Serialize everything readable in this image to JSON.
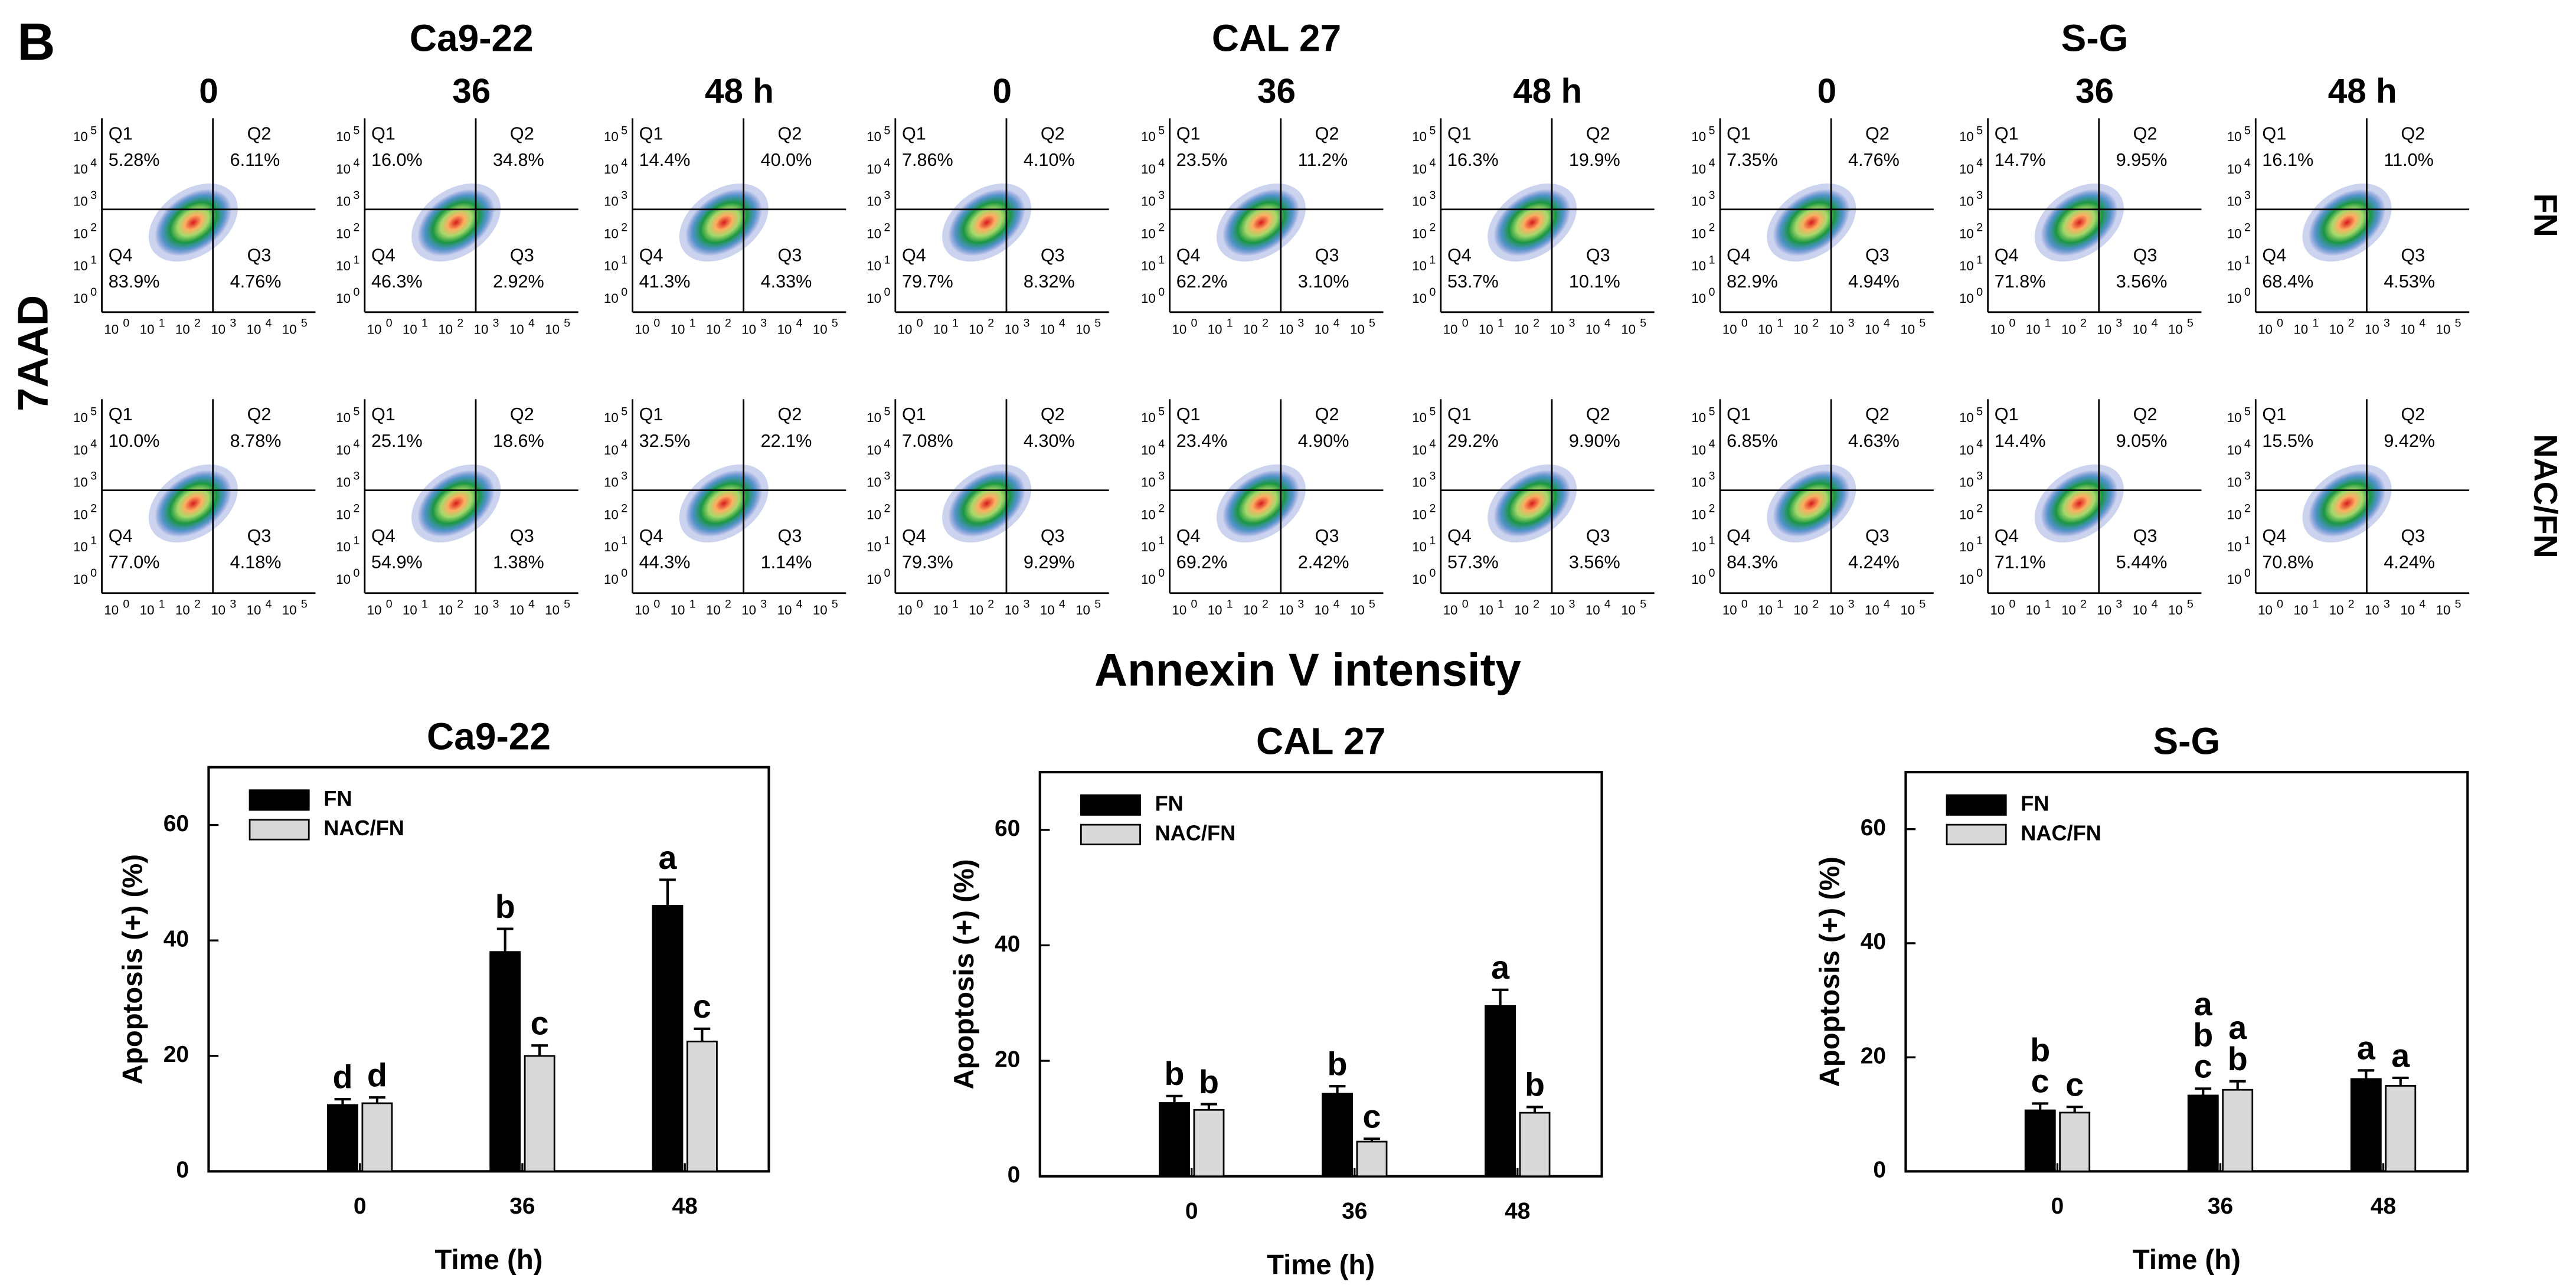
{
  "flow": {
    "panel_label": "B",
    "y_label": "7AAD",
    "x_label": "Annexin V intensity",
    "tick_base": "10",
    "exponents": [
      "0",
      "1",
      "2",
      "3",
      "4",
      "5"
    ],
    "rows": [
      "FN",
      "NAC/FN"
    ],
    "quadrant_names": [
      "Q1",
      "Q2",
      "Q3",
      "Q4"
    ],
    "groups": [
      {
        "title": "Ca9-22",
        "times": [
          "0",
          "36",
          "48 h"
        ],
        "panels": [
          [
            [
              "5.28%",
              "6.11%",
              "4.76%",
              "83.9%"
            ],
            [
              "16.0%",
              "34.8%",
              "2.92%",
              "46.3%"
            ],
            [
              "14.4%",
              "40.0%",
              "4.33%",
              "41.3%"
            ]
          ],
          [
            [
              "10.0%",
              "8.78%",
              "4.18%",
              "77.0%"
            ],
            [
              "25.1%",
              "18.6%",
              "1.38%",
              "54.9%"
            ],
            [
              "32.5%",
              "22.1%",
              "1.14%",
              "44.3%"
            ]
          ]
        ]
      },
      {
        "title": "CAL 27",
        "times": [
          "0",
          "36",
          "48 h"
        ],
        "panels": [
          [
            [
              "7.86%",
              "4.10%",
              "8.32%",
              "79.7%"
            ],
            [
              "23.5%",
              "11.2%",
              "3.10%",
              "62.2%"
            ],
            [
              "16.3%",
              "19.9%",
              "10.1%",
              "53.7%"
            ]
          ],
          [
            [
              "7.08%",
              "4.30%",
              "9.29%",
              "79.3%"
            ],
            [
              "23.4%",
              "4.90%",
              "2.42%",
              "69.2%"
            ],
            [
              "29.2%",
              "9.90%",
              "3.56%",
              "57.3%"
            ]
          ]
        ]
      },
      {
        "title": "S-G",
        "times": [
          "0",
          "36",
          "48 h"
        ],
        "panels": [
          [
            [
              "7.35%",
              "4.76%",
              "4.94%",
              "82.9%"
            ],
            [
              "14.7%",
              "9.95%",
              "3.56%",
              "71.8%"
            ],
            [
              "16.1%",
              "11.0%",
              "4.53%",
              "68.4%"
            ]
          ],
          [
            [
              "6.85%",
              "4.63%",
              "4.24%",
              "84.3%"
            ],
            [
              "14.4%",
              "9.05%",
              "5.44%",
              "71.1%"
            ],
            [
              "15.5%",
              "9.42%",
              "4.24%",
              "70.8%"
            ]
          ]
        ]
      }
    ]
  },
  "chart_data": [
    {
      "type": "bar",
      "title": "Ca9-22",
      "x_label": "Time (h)",
      "y_label": "Apoptosis (+) (%)",
      "categories": [
        "0",
        "36",
        "48"
      ],
      "ylim": [
        0,
        70
      ],
      "yticks": [
        0,
        20,
        40,
        60
      ],
      "legend": "upper left",
      "series": [
        {
          "name": "FN",
          "color": "#000000",
          "values": [
            11.5,
            38,
            46
          ],
          "errors": [
            1,
            4,
            4.5
          ],
          "letters": [
            [
              "d"
            ],
            [
              "b"
            ],
            [
              "a"
            ]
          ]
        },
        {
          "name": "NAC/FN",
          "color": "#d9d9d9",
          "values": [
            11.8,
            20,
            22.5
          ],
          "errors": [
            1,
            1.8,
            2.2
          ],
          "letters": [
            [
              "d"
            ],
            [
              "c"
            ],
            [
              "c"
            ]
          ]
        }
      ]
    },
    {
      "type": "bar",
      "title": "CAL 27",
      "x_label": "Time (h)",
      "y_label": "Apoptosis (+) (%)",
      "categories": [
        "0",
        "36",
        "48"
      ],
      "ylim": [
        0,
        70
      ],
      "yticks": [
        0,
        20,
        40,
        60
      ],
      "legend": "upper left",
      "series": [
        {
          "name": "FN",
          "color": "#000000",
          "values": [
            12.7,
            14.3,
            29.5
          ],
          "errors": [
            1.2,
            1.3,
            2.8
          ],
          "letters": [
            [
              "b"
            ],
            [
              "b"
            ],
            [
              "a"
            ]
          ]
        },
        {
          "name": "NAC/FN",
          "color": "#d9d9d9",
          "values": [
            11.5,
            6,
            11
          ],
          "errors": [
            1,
            0.5,
            1
          ],
          "letters": [
            [
              "b"
            ],
            [
              "c"
            ],
            [
              "b"
            ]
          ]
        }
      ]
    },
    {
      "type": "bar",
      "title": "S-G",
      "x_label": "Time (h)",
      "y_label": "Apoptosis (+) (%)",
      "categories": [
        "0",
        "36",
        "48"
      ],
      "ylim": [
        0,
        70
      ],
      "yticks": [
        0,
        20,
        40,
        60
      ],
      "legend": "upper left",
      "series": [
        {
          "name": "FN",
          "color": "#000000",
          "values": [
            10.7,
            13.3,
            16.2
          ],
          "errors": [
            1.2,
            1.2,
            1.5
          ],
          "letters": [
            [
              "b",
              "c"
            ],
            [
              "a",
              "b",
              "c"
            ],
            [
              "a"
            ]
          ]
        },
        {
          "name": "NAC/FN",
          "color": "#d9d9d9",
          "values": [
            10.3,
            14.3,
            15
          ],
          "errors": [
            1,
            1.5,
            1.4
          ],
          "letters": [
            [
              "c"
            ],
            [
              "a",
              "b"
            ],
            [
              "a"
            ]
          ]
        }
      ]
    }
  ]
}
